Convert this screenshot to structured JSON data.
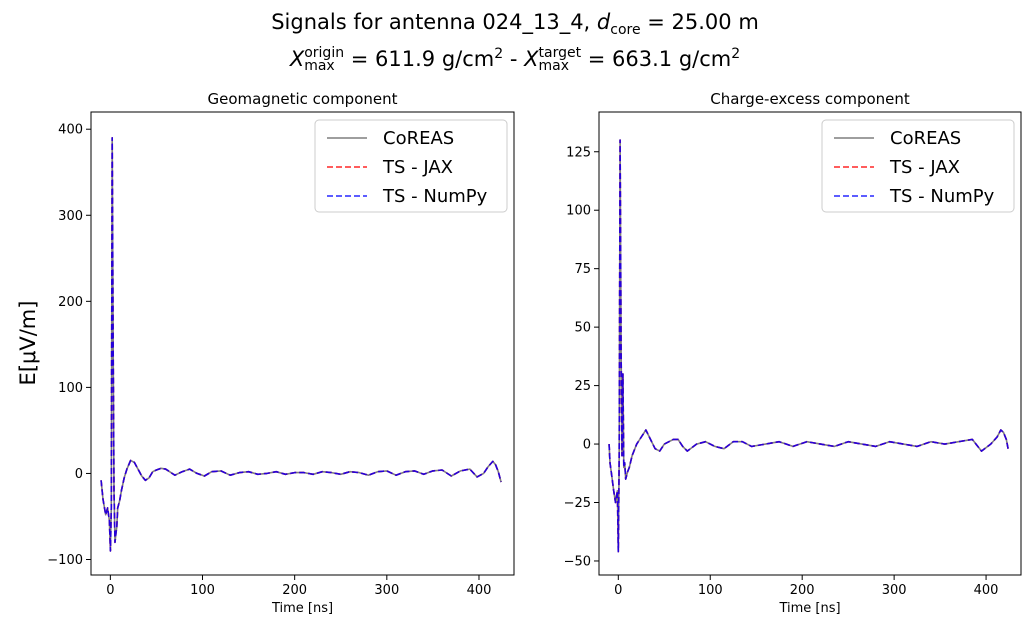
{
  "figure": {
    "title_line1_prefix": "Signals for antenna 024_13_4, ",
    "title_line1_var": "d",
    "title_line1_sub": "core",
    "title_line1_suffix": " = 25.00 m",
    "title_line2_var1": "X",
    "title_line2_sup1": "origin",
    "title_line2_sub1": "max",
    "title_line2_mid": " =  611.9 g/cm",
    "title_line2_exp1": "2",
    "title_line2_sep": " -  ",
    "title_line2_var2": "X",
    "title_line2_sup2": "target",
    "title_line2_sub2": "max",
    "title_line2_end": " =  663.1 g/cm",
    "title_line2_exp2": "2",
    "shared_ylabel": "E[μV/m]"
  },
  "colors": {
    "coreas": "#7f7f7f",
    "jax": "#ff0000",
    "numpy": "#0000ff"
  },
  "chart_data": [
    {
      "type": "line",
      "title": "Geomagnetic component",
      "xlabel": "Time [ns]",
      "ylabel": "",
      "xlim": [
        -21,
        438
      ],
      "ylim": [
        -118,
        420
      ],
      "xticks": [
        0,
        100,
        200,
        300,
        400
      ],
      "yticks": [
        -100,
        0,
        100,
        200,
        300,
        400
      ],
      "grid": false,
      "legend": "upper-right",
      "series": [
        {
          "name": "CoREAS",
          "style": "solid"
        },
        {
          "name": "TS - JAX",
          "style": "dashed"
        },
        {
          "name": "TS - NumPy",
          "style": "dashed"
        }
      ],
      "x": [
        -10,
        -8,
        -5,
        -3,
        -1,
        0,
        1,
        2,
        3,
        4,
        5,
        6,
        7,
        8,
        10,
        12,
        15,
        18,
        22,
        26,
        30,
        34,
        38,
        42,
        46,
        50,
        55,
        60,
        70,
        78,
        86,
        94,
        102,
        110,
        120,
        130,
        140,
        150,
        160,
        170,
        180,
        190,
        200,
        210,
        220,
        230,
        240,
        250,
        260,
        270,
        280,
        290,
        300,
        310,
        320,
        330,
        340,
        350,
        360,
        370,
        380,
        390,
        398,
        405,
        410,
        415,
        418,
        421,
        424
      ],
      "values": [
        -8,
        -30,
        -48,
        -40,
        -55,
        -90,
        -40,
        390,
        160,
        -20,
        -80,
        -70,
        -62,
        -40,
        -32,
        -20,
        -5,
        5,
        15,
        13,
        5,
        -3,
        -8,
        -5,
        2,
        4,
        6,
        5,
        -2,
        2,
        5,
        0,
        -3,
        2,
        3,
        -2,
        1,
        2,
        -1,
        0,
        2,
        -1,
        1,
        1,
        -1,
        2,
        1,
        -1,
        2,
        1,
        -2,
        2,
        3,
        -2,
        2,
        3,
        -1,
        3,
        4,
        -3,
        3,
        5,
        -4,
        0,
        8,
        14,
        10,
        2,
        -10
      ]
    },
    {
      "type": "line",
      "title": "Charge-excess component",
      "xlabel": "Time [ns]",
      "ylabel": "",
      "xlim": [
        -21,
        438
      ],
      "ylim": [
        -56,
        142
      ],
      "xticks": [
        0,
        100,
        200,
        300,
        400
      ],
      "yticks": [
        -50,
        -25,
        0,
        25,
        50,
        75,
        100,
        125
      ],
      "grid": false,
      "legend": "upper-right",
      "series": [
        {
          "name": "CoREAS",
          "style": "solid"
        },
        {
          "name": "TS - JAX",
          "style": "dashed"
        },
        {
          "name": "TS - NumPy",
          "style": "dashed"
        }
      ],
      "x": [
        -10,
        -9,
        -7,
        -5,
        -3,
        -1,
        0,
        1,
        2,
        3,
        4,
        5,
        6,
        7,
        8,
        10,
        12,
        15,
        20,
        25,
        30,
        35,
        40,
        45,
        50,
        55,
        60,
        65,
        70,
        75,
        85,
        95,
        105,
        115,
        125,
        135,
        145,
        160,
        175,
        190,
        205,
        220,
        235,
        250,
        265,
        280,
        295,
        310,
        325,
        340,
        355,
        370,
        385,
        395,
        405,
        412,
        416,
        419,
        422,
        424
      ],
      "values": [
        0,
        -8,
        -14,
        -20,
        -25,
        -20,
        -46,
        -5,
        130,
        40,
        -5,
        30,
        -10,
        -8,
        -15,
        -12,
        -10,
        -5,
        0,
        3,
        6,
        2,
        -2,
        -3,
        0,
        1,
        2,
        2,
        -1,
        -3,
        0,
        1,
        -1,
        -2,
        1,
        1,
        -1,
        0,
        1,
        -1,
        1,
        0,
        -1,
        1,
        0,
        -1,
        1,
        0,
        -1,
        1,
        0,
        1,
        2,
        -3,
        0,
        3,
        6,
        5,
        2,
        -2
      ]
    }
  ]
}
